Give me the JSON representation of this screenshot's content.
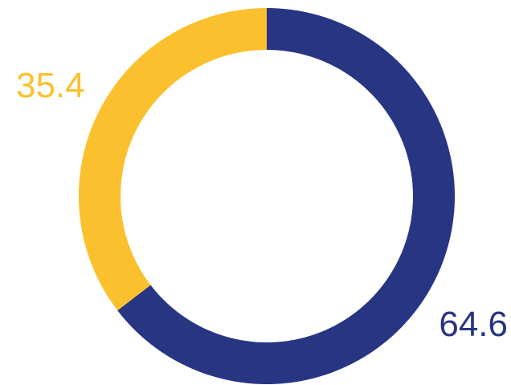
{
  "chart_data": {
    "type": "pie",
    "variant": "donut",
    "slices": [
      {
        "label": "64.6",
        "value": 64.6,
        "color": "#283583"
      },
      {
        "label": "35.4",
        "value": 35.4,
        "color": "#FBC02D"
      }
    ],
    "start_angle_deg": 0,
    "direction": "clockwise",
    "legend": "none"
  }
}
